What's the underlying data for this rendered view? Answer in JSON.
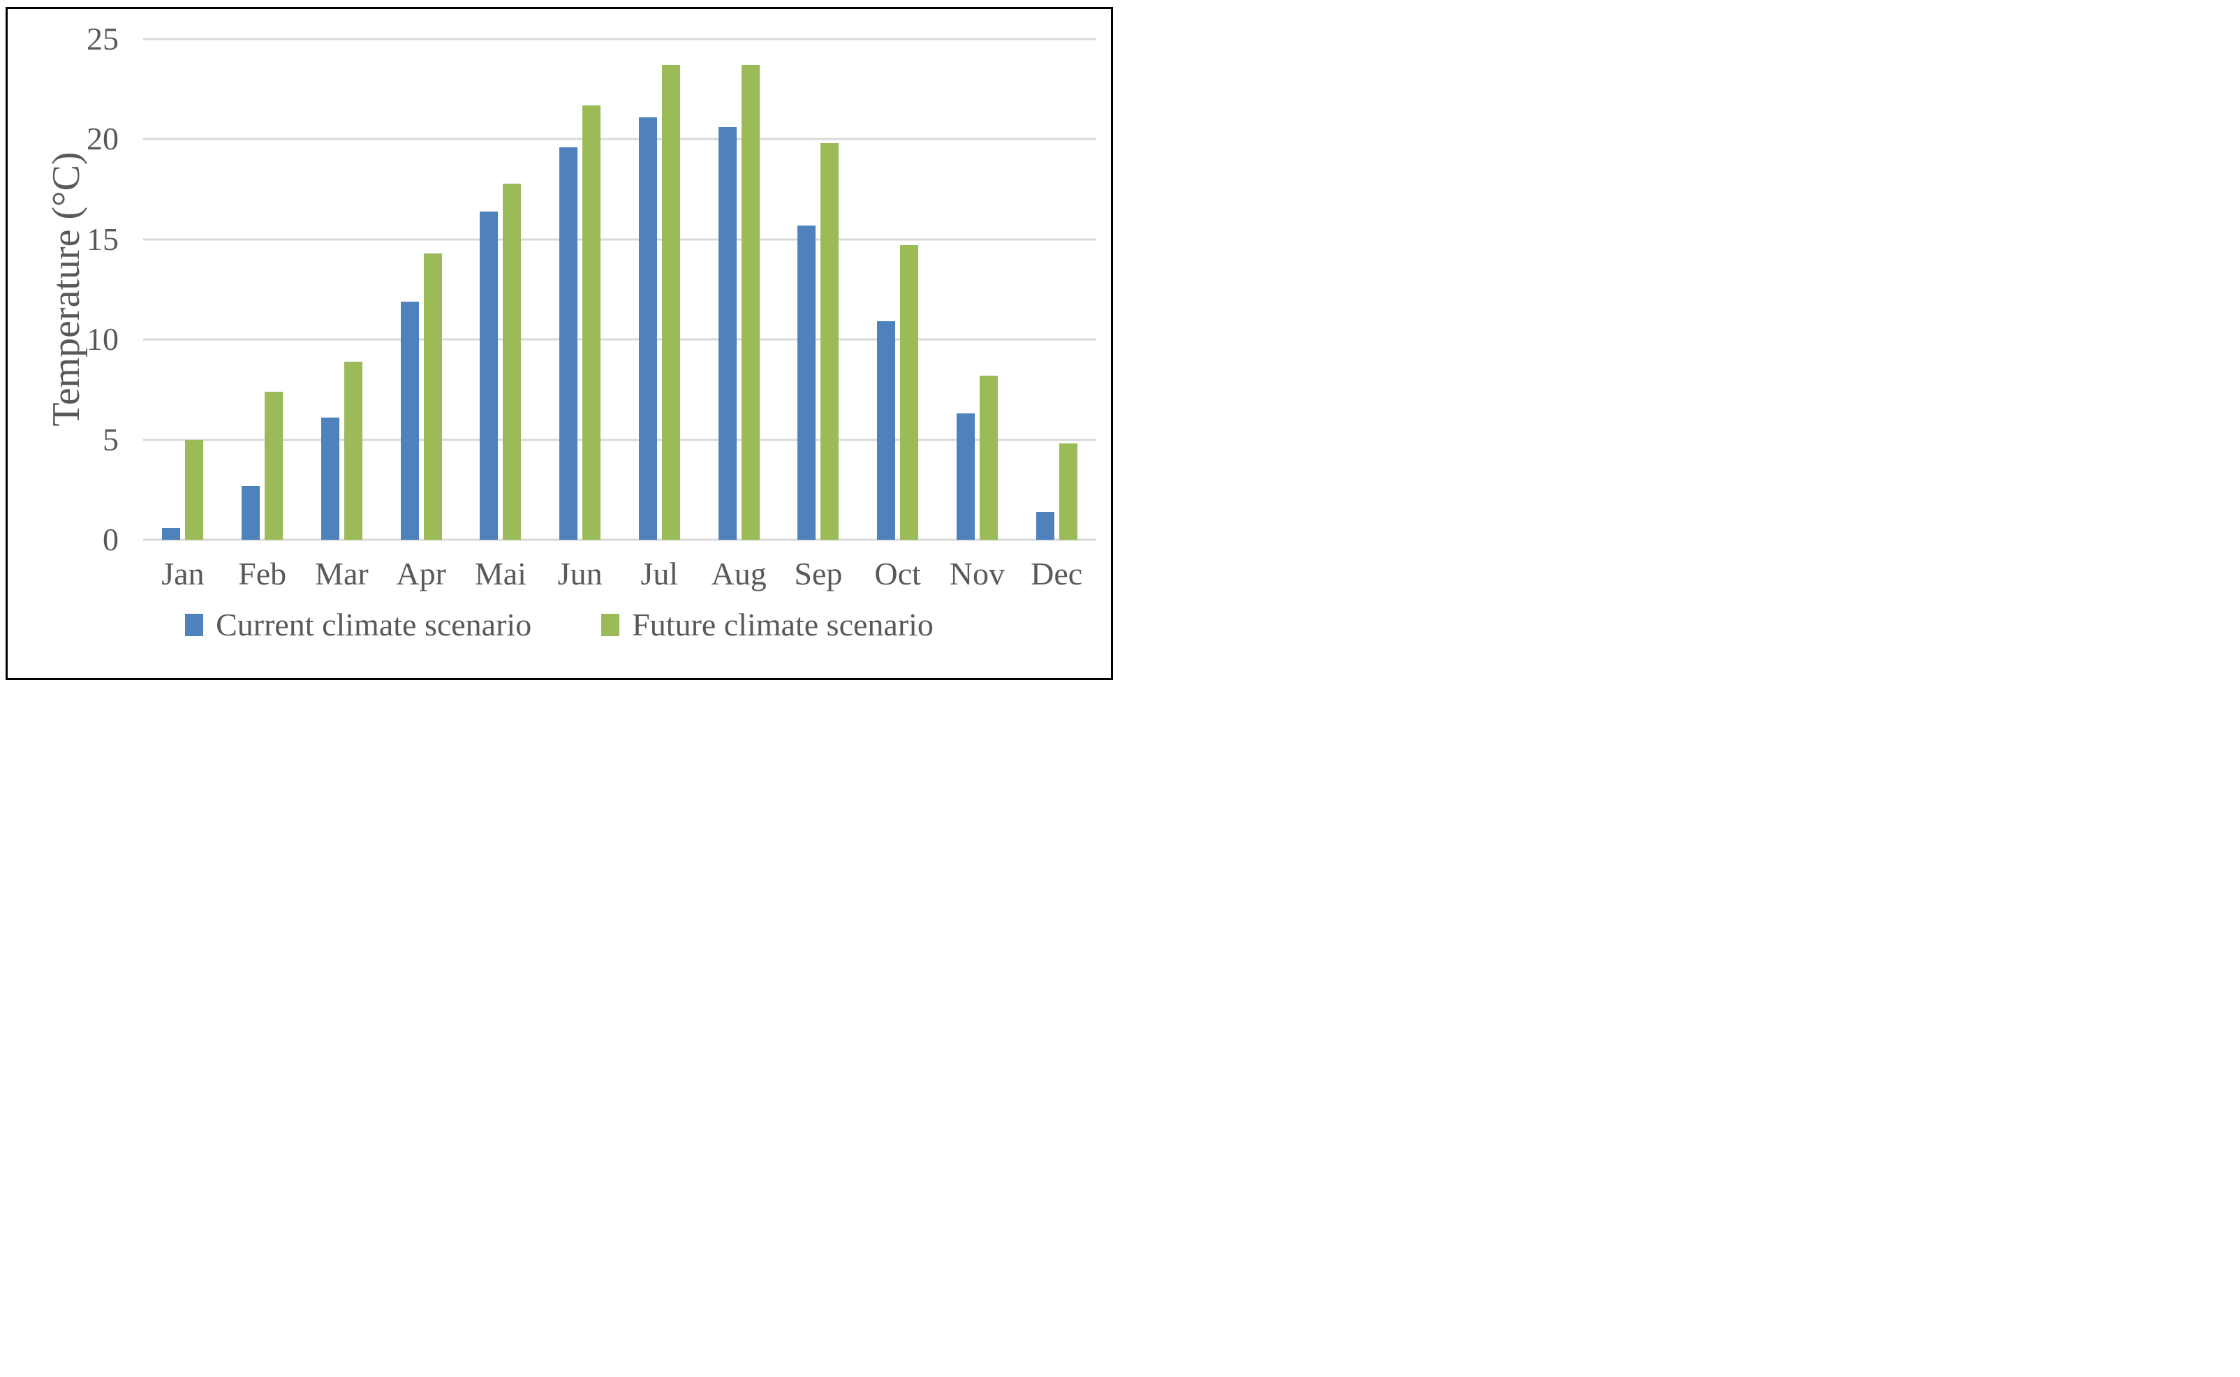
{
  "chart_data": {
    "type": "bar",
    "title": "",
    "categories": [
      "Jan",
      "Feb",
      "Mar",
      "Apr",
      "Mai",
      "Jun",
      "Jul",
      "Aug",
      "Sep",
      "Oct",
      "Nov",
      "Dec"
    ],
    "series": [
      {
        "name": "Current climate scenario",
        "color": "#4F81BD",
        "values": [
          0.6,
          2.7,
          6.1,
          11.9,
          16.4,
          19.6,
          21.1,
          20.6,
          15.7,
          10.9,
          6.3,
          1.4
        ]
      },
      {
        "name": "Future climate scenario",
        "color": "#9BBB59",
        "values": [
          5.0,
          7.4,
          8.9,
          14.3,
          17.8,
          21.7,
          23.7,
          23.7,
          19.8,
          14.7,
          8.2,
          4.8
        ]
      }
    ],
    "xlabel": "",
    "ylabel": "Temperature (°C)",
    "ylim": [
      0,
      25
    ],
    "yticks": [
      0,
      5,
      10,
      15,
      20,
      25
    ],
    "grid": true,
    "legend_position": "bottom",
    "colors": {
      "gridline": "#D9D9D9",
      "text": "#595959",
      "frame": "#000000",
      "background": "#FFFFFF"
    }
  }
}
